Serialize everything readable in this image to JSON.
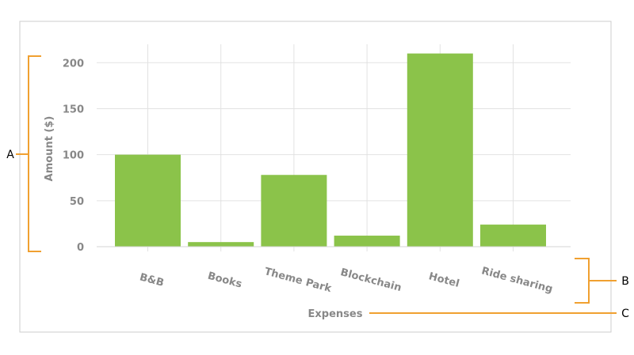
{
  "chart_data": {
    "type": "bar",
    "xlabel": "Expenses",
    "ylabel": "Amount ($)",
    "categories": [
      "B&B",
      "Books",
      "Theme Park",
      "Blockchain",
      "Hotel",
      "Ride sharing"
    ],
    "values": [
      100,
      5,
      78,
      12,
      210,
      24
    ],
    "ylim": [
      0,
      220
    ],
    "yticks": [
      0,
      50,
      100,
      150,
      200
    ],
    "grid": true,
    "bar_color": "#8bc34a"
  },
  "annotations": {
    "a_label": "A",
    "b_label": "B",
    "c_label": "C"
  },
  "colors": {
    "annotation": "#f0a030",
    "text": "#888888",
    "grid": "#e2e2e2",
    "frame": "#cccccc"
  }
}
